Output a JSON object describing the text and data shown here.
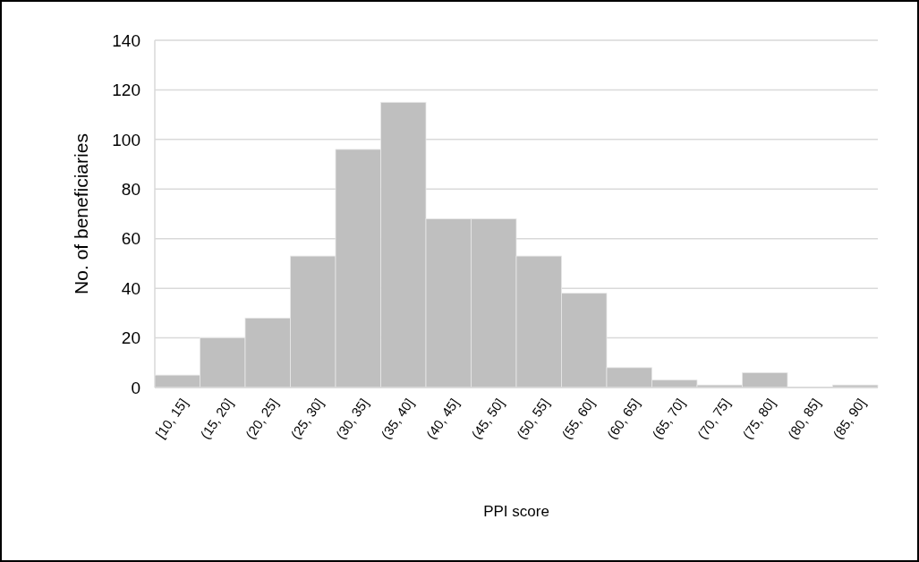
{
  "chart_data": {
    "type": "bar",
    "xlabel": "PPI score",
    "ylabel": "No. of beneficiaries",
    "categories": [
      "[10, 15]",
      "(15, 20]",
      "(20, 25]",
      "(25, 30]",
      "(30, 35]",
      "(35, 40]",
      "(40, 45]",
      "(45, 50]",
      "(50, 55]",
      "(55, 60]",
      "(60, 65]",
      "(65, 70]",
      "(70, 75]",
      "(75, 80]",
      "(80, 85]",
      "(85, 90]"
    ],
    "values": [
      5,
      20,
      28,
      53,
      96,
      115,
      68,
      68,
      53,
      38,
      8,
      3,
      1,
      6,
      0,
      1
    ],
    "color": "#bfbfbf",
    "ylim": [
      0,
      140
    ],
    "yticks": [
      0,
      20,
      40,
      60,
      80,
      100,
      120,
      140
    ],
    "grid": "y"
  }
}
